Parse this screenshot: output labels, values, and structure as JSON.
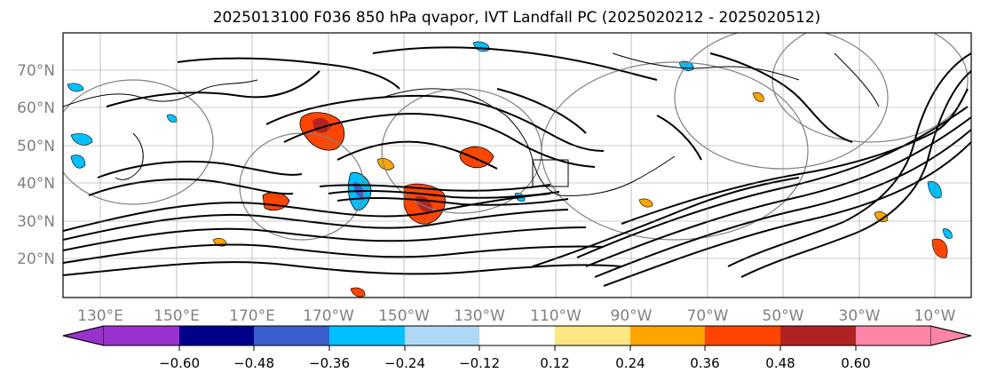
{
  "title": "2025013100 F036 850 hPa qvapor, IVT Landfall PC (2025020212 - 2025020512)",
  "lat_labels": [
    "70°N",
    "60°N",
    "50°N",
    "40°N",
    "30°N",
    "20°N"
  ],
  "lon_labels": [
    "130°E",
    "150°E",
    "170°E",
    "170°W",
    "150°W",
    "130°W",
    "110°W",
    "90°W",
    "70°W",
    "50°W",
    "30°W",
    "10°W"
  ],
  "colorbar": {
    "ticks": [
      "−0.60",
      "−0.48",
      "−0.36",
      "−0.24",
      "−0.12",
      "0.12",
      "0.24",
      "0.36",
      "0.48",
      "0.60"
    ],
    "colors": [
      "#9932cc",
      "#00008b",
      "#3a5fcd",
      "#00bfff",
      "#add8f6",
      "#ffffff",
      "#ffe680",
      "#ffa500",
      "#ff4500",
      "#b22222",
      "#ff85a8"
    ],
    "extend": "both"
  },
  "colors": {
    "contour": "#000000",
    "grid": "#808080",
    "axis_label": "#808080"
  }
}
